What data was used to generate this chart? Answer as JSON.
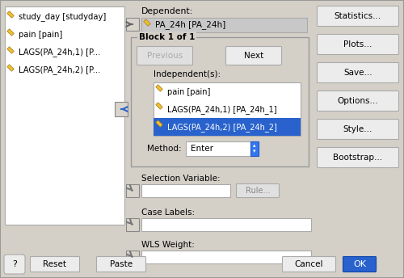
{
  "bg_color": "#d4d0c8",
  "white": "#ffffff",
  "blue_selected": "#2962cc",
  "blue_selected_text": "#ffffff",
  "button_face": "#f0f0f0",
  "border_dark": "#888888",
  "border_light": "#cccccc",
  "left_panel_items": [
    "study_day [studyday]",
    "pain [pain]",
    "LAGS(PA_24h,1) [P...",
    "LAGS(PA_24h,2) [P..."
  ],
  "dependent_label": "Dependent:",
  "dependent_value": "PA_24h [PA_24h]",
  "block_label": "Block 1 of 1",
  "independent_label": "Independent(s):",
  "independent_items": [
    "pain [pain]",
    "LAGS(PA_24h,1) [PA_24h_1]",
    "LAGS(PA_24h,2) [PA_24h_2]"
  ],
  "selected_item_index": 2,
  "method_label": "Method:",
  "method_value": "Enter",
  "selection_variable_label": "Selection Variable:",
  "case_labels_label": "Case Labels:",
  "wls_weight_label": "WLS Weight:",
  "right_buttons": [
    "Statistics...",
    "Plots...",
    "Save...",
    "Options...",
    "Style...",
    "Bootstrap..."
  ],
  "bottom_buttons": [
    "?",
    "Reset",
    "Paste",
    "Cancel",
    "OK"
  ],
  "ok_color": "#2962cc",
  "rule_button": "Rule..."
}
